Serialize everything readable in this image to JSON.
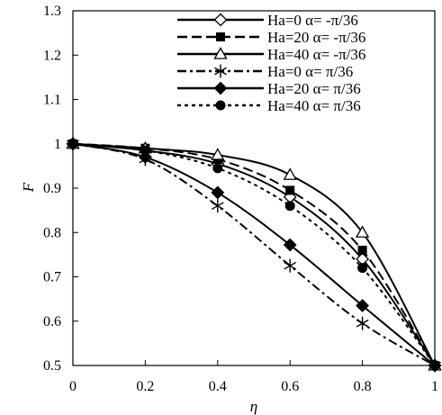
{
  "chart_data": {
    "type": "line",
    "xlabel": "η",
    "ylabel": "F",
    "xlim": [
      0,
      1
    ],
    "ylim": [
      0.5,
      1.3
    ],
    "xticks": [
      0,
      0.2,
      0.4,
      0.6,
      0.8,
      1
    ],
    "yticks": [
      0.5,
      0.6,
      0.7,
      0.8,
      0.9,
      1,
      1.1,
      1.2,
      1.3
    ],
    "xtick_labels": [
      "0",
      "0.2",
      "0.4",
      "0.6",
      "0.8",
      "1"
    ],
    "ytick_labels": [
      "0.5",
      "0.6",
      "0.7",
      "0.8",
      "0.9",
      "1",
      "1.1",
      "1.2",
      "1.3"
    ],
    "grid": false,
    "legend_position": "top-right",
    "series": [
      {
        "name": "Ha=0  α= -π/36",
        "marker": "diamond-open",
        "line": "solid",
        "x": [
          0,
          0.2,
          0.4,
          0.6,
          0.8,
          1
        ],
        "y": [
          1.0,
          0.985,
          0.955,
          0.88,
          0.74,
          0.5
        ]
      },
      {
        "name": "Ha=20  α= -π/36",
        "marker": "square-filled",
        "line": "dash",
        "x": [
          0,
          0.2,
          0.4,
          0.6,
          0.8,
          1
        ],
        "y": [
          1.0,
          0.99,
          0.965,
          0.895,
          0.76,
          0.5
        ]
      },
      {
        "name": "Ha=40  α= -π/36",
        "marker": "triangle-open",
        "line": "solid",
        "x": [
          0,
          0.2,
          0.4,
          0.6,
          0.8,
          1
        ],
        "y": [
          1.0,
          0.99,
          0.975,
          0.93,
          0.8,
          0.5
        ]
      },
      {
        "name": "Ha=0  α= π/36",
        "marker": "asterisk",
        "line": "dashdot",
        "x": [
          0,
          0.2,
          0.4,
          0.6,
          0.8,
          1
        ],
        "y": [
          1.0,
          0.965,
          0.86,
          0.725,
          0.595,
          0.5
        ]
      },
      {
        "name": "Ha=20  α= π/36",
        "marker": "diamond-filled",
        "line": "solid",
        "x": [
          0,
          0.2,
          0.4,
          0.6,
          0.8,
          1
        ],
        "y": [
          1.0,
          0.97,
          0.89,
          0.772,
          0.635,
          0.5
        ]
      },
      {
        "name": "Ha=40  α= π/36",
        "marker": "circle-filled",
        "line": "dot",
        "x": [
          0,
          0.2,
          0.4,
          0.6,
          0.8,
          1
        ],
        "y": [
          1.0,
          0.985,
          0.945,
          0.86,
          0.72,
          0.5
        ]
      }
    ]
  }
}
